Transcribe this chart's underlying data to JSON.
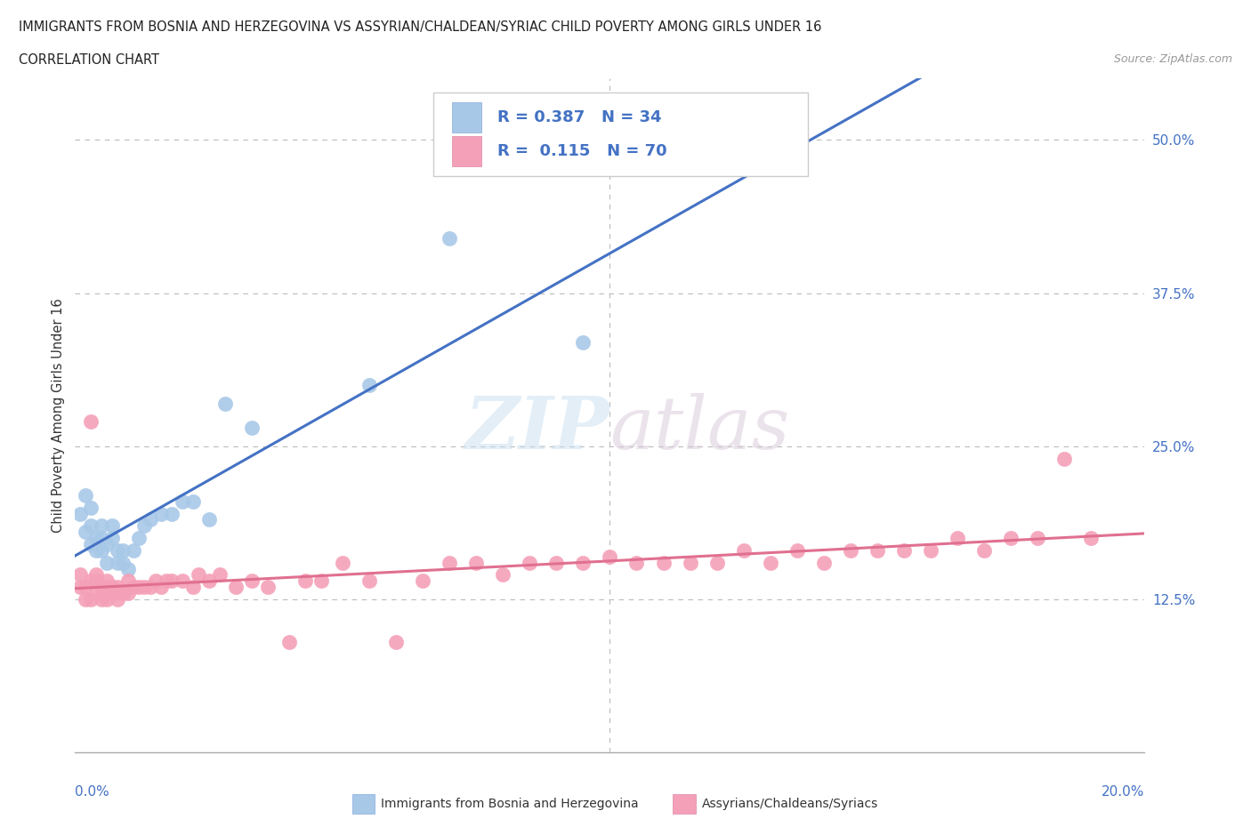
{
  "title_line1": "IMMIGRANTS FROM BOSNIA AND HERZEGOVINA VS ASSYRIAN/CHALDEAN/SYRIAC CHILD POVERTY AMONG GIRLS UNDER 16",
  "title_line2": "CORRELATION CHART",
  "source": "Source: ZipAtlas.com",
  "ylabel": "Child Poverty Among Girls Under 16",
  "xlim": [
    0.0,
    0.2
  ],
  "ylim": [
    0.0,
    0.55
  ],
  "yticks": [
    0.125,
    0.25,
    0.375,
    0.5
  ],
  "ytick_labels": [
    "12.5%",
    "25.0%",
    "37.5%",
    "50.0%"
  ],
  "R_blue": 0.387,
  "N_blue": 34,
  "R_pink": 0.115,
  "N_pink": 70,
  "legend_label_blue": "Immigrants from Bosnia and Herzegovina",
  "legend_label_pink": "Assyrians/Chaldeans/Syriacs",
  "color_blue": "#a8c8e8",
  "color_pink": "#f4a0b8",
  "line_color_blue": "#4472c4",
  "line_color_pink": "#e07090",
  "tick_label_color": "#4472c4",
  "watermark": "ZIPatlas",
  "blue_x": [
    0.001,
    0.002,
    0.002,
    0.003,
    0.003,
    0.003,
    0.004,
    0.004,
    0.005,
    0.005,
    0.005,
    0.006,
    0.006,
    0.007,
    0.007,
    0.008,
    0.008,
    0.009,
    0.009,
    0.01,
    0.011,
    0.012,
    0.013,
    0.014,
    0.016,
    0.018,
    0.02,
    0.022,
    0.025,
    0.028,
    0.033,
    0.055,
    0.07,
    0.095
  ],
  "blue_y": [
    0.195,
    0.18,
    0.21,
    0.17,
    0.185,
    0.2,
    0.165,
    0.175,
    0.165,
    0.175,
    0.185,
    0.155,
    0.17,
    0.175,
    0.185,
    0.155,
    0.165,
    0.155,
    0.165,
    0.15,
    0.165,
    0.175,
    0.185,
    0.19,
    0.195,
    0.195,
    0.205,
    0.205,
    0.19,
    0.285,
    0.265,
    0.3,
    0.42,
    0.335
  ],
  "pink_x": [
    0.001,
    0.001,
    0.002,
    0.002,
    0.003,
    0.003,
    0.003,
    0.004,
    0.004,
    0.004,
    0.005,
    0.005,
    0.006,
    0.006,
    0.006,
    0.007,
    0.007,
    0.008,
    0.008,
    0.009,
    0.01,
    0.01,
    0.011,
    0.012,
    0.013,
    0.014,
    0.015,
    0.016,
    0.017,
    0.018,
    0.02,
    0.022,
    0.023,
    0.025,
    0.027,
    0.03,
    0.033,
    0.036,
    0.04,
    0.043,
    0.046,
    0.05,
    0.055,
    0.06,
    0.065,
    0.07,
    0.075,
    0.08,
    0.085,
    0.09,
    0.095,
    0.1,
    0.105,
    0.11,
    0.115,
    0.12,
    0.125,
    0.13,
    0.135,
    0.14,
    0.145,
    0.15,
    0.155,
    0.16,
    0.165,
    0.17,
    0.175,
    0.18,
    0.185,
    0.19
  ],
  "pink_y": [
    0.135,
    0.145,
    0.125,
    0.135,
    0.125,
    0.14,
    0.27,
    0.13,
    0.14,
    0.145,
    0.125,
    0.135,
    0.125,
    0.135,
    0.14,
    0.13,
    0.135,
    0.125,
    0.135,
    0.13,
    0.13,
    0.14,
    0.135,
    0.135,
    0.135,
    0.135,
    0.14,
    0.135,
    0.14,
    0.14,
    0.14,
    0.135,
    0.145,
    0.14,
    0.145,
    0.135,
    0.14,
    0.135,
    0.09,
    0.14,
    0.14,
    0.155,
    0.14,
    0.09,
    0.14,
    0.155,
    0.155,
    0.145,
    0.155,
    0.155,
    0.155,
    0.16,
    0.155,
    0.155,
    0.155,
    0.155,
    0.165,
    0.155,
    0.165,
    0.155,
    0.165,
    0.165,
    0.165,
    0.165,
    0.175,
    0.165,
    0.175,
    0.175,
    0.24,
    0.175
  ]
}
